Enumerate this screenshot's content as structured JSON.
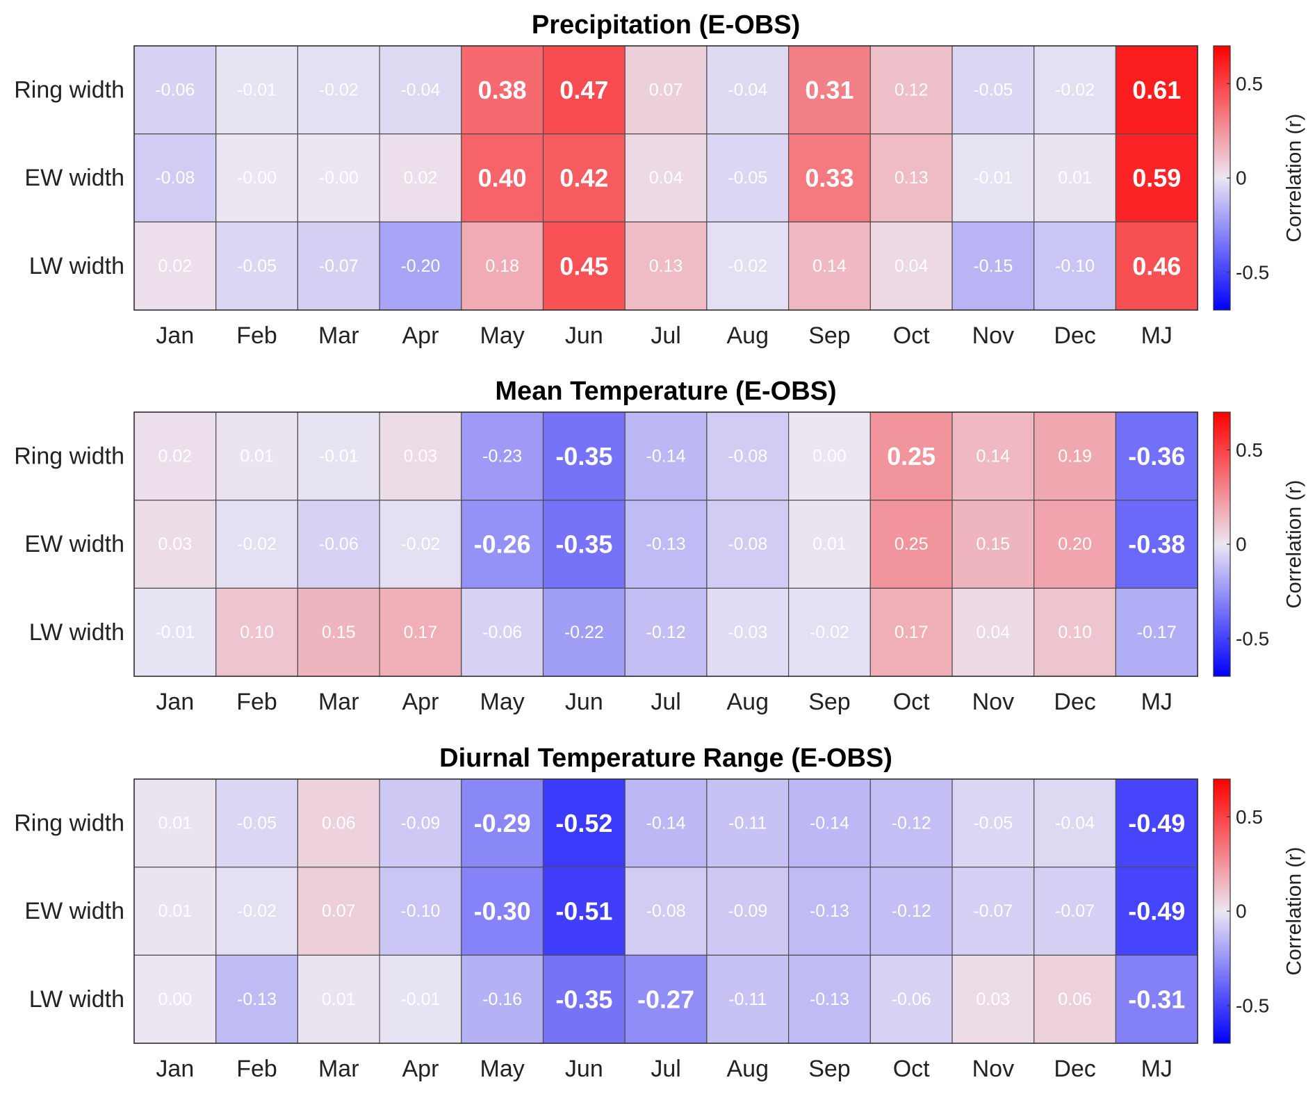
{
  "chart_data": [
    {
      "type": "heatmap",
      "title": "Precipitation (E-OBS)",
      "rows": [
        "Ring width",
        "EW width",
        "LW width"
      ],
      "columns": [
        "Jan",
        "Feb",
        "Mar",
        "Apr",
        "May",
        "Jun",
        "Jul",
        "Aug",
        "Sep",
        "Oct",
        "Nov",
        "Dec",
        "MJ"
      ],
      "values": [
        [
          -0.06,
          -0.01,
          -0.02,
          -0.04,
          0.38,
          0.47,
          0.07,
          -0.04,
          0.31,
          0.12,
          -0.05,
          -0.02,
          0.61
        ],
        [
          -0.08,
          -0.0,
          -0.0,
          0.02,
          0.4,
          0.42,
          0.04,
          -0.05,
          0.33,
          0.13,
          -0.01,
          0.01,
          0.59
        ],
        [
          0.02,
          -0.05,
          -0.07,
          -0.2,
          0.18,
          0.45,
          0.13,
          -0.02,
          0.14,
          0.04,
          -0.15,
          -0.1,
          0.46
        ]
      ],
      "labels": [
        [
          "-0.06",
          "-0.01",
          "-0.02",
          "-0.04",
          "0.38",
          "0.47",
          "0.07",
          "-0.04",
          "0.31",
          "0.12",
          "-0.05",
          "-0.02",
          "0.61"
        ],
        [
          "-0.08",
          "-0.00",
          "-0.00",
          "0.02",
          "0.40",
          "0.42",
          "0.04",
          "-0.05",
          "0.33",
          "0.13",
          "-0.01",
          "0.01",
          "0.59"
        ],
        [
          "0.02",
          "-0.05",
          "-0.07",
          "-0.20",
          "0.18",
          "0.45",
          "0.13",
          "-0.02",
          "0.14",
          "0.04",
          "-0.15",
          "-0.10",
          "0.46"
        ]
      ],
      "colorbar": {
        "label": "Correlation (r)",
        "range": [
          -0.7,
          0.7
        ],
        "ticks": [
          -0.5,
          0,
          0.5
        ],
        "tick_labels": [
          "-0.5",
          "0",
          "0.5"
        ]
      }
    },
    {
      "type": "heatmap",
      "title": "Mean Temperature (E-OBS)",
      "rows": [
        "Ring width",
        "EW width",
        "LW width"
      ],
      "columns": [
        "Jan",
        "Feb",
        "Mar",
        "Apr",
        "May",
        "Jun",
        "Jul",
        "Aug",
        "Sep",
        "Oct",
        "Nov",
        "Dec",
        "MJ"
      ],
      "values": [
        [
          0.02,
          0.01,
          -0.01,
          0.03,
          -0.23,
          -0.35,
          -0.14,
          -0.08,
          0.0,
          0.25,
          0.14,
          0.19,
          -0.36
        ],
        [
          0.03,
          -0.02,
          -0.06,
          -0.02,
          -0.26,
          -0.35,
          -0.13,
          -0.08,
          0.01,
          0.25,
          0.15,
          0.2,
          -0.38
        ],
        [
          -0.01,
          0.1,
          0.15,
          0.17,
          -0.06,
          -0.22,
          -0.12,
          -0.03,
          -0.02,
          0.17,
          0.04,
          0.1,
          -0.17
        ]
      ],
      "labels": [
        [
          "0.02",
          "0.01",
          "-0.01",
          "0.03",
          "-0.23",
          "-0.35",
          "-0.14",
          "-0.08",
          "0.00",
          "0.25",
          "0.14",
          "0.19",
          "-0.36"
        ],
        [
          "0.03",
          "-0.02",
          "-0.06",
          "-0.02",
          "-0.26",
          "-0.35",
          "-0.13",
          "-0.08",
          "0.01",
          "0.25",
          "0.15",
          "0.20",
          "-0.38"
        ],
        [
          "-0.01",
          "0.10",
          "0.15",
          "0.17",
          "-0.06",
          "-0.22",
          "-0.12",
          "-0.03",
          "-0.02",
          "0.17",
          "0.04",
          "0.10",
          "-0.17"
        ]
      ],
      "bold": [
        [
          false,
          false,
          false,
          false,
          false,
          true,
          false,
          false,
          false,
          true,
          false,
          false,
          true
        ],
        [
          false,
          false,
          false,
          false,
          true,
          true,
          false,
          false,
          false,
          false,
          false,
          false,
          true
        ],
        [
          false,
          false,
          false,
          false,
          false,
          false,
          false,
          false,
          false,
          false,
          false,
          false,
          false
        ]
      ],
      "colorbar": {
        "label": "Correlation (r)",
        "range": [
          -0.7,
          0.7
        ],
        "ticks": [
          -0.5,
          0,
          0.5
        ],
        "tick_labels": [
          "-0.5",
          "0",
          "0.5"
        ]
      }
    },
    {
      "type": "heatmap",
      "title": "Diurnal Temperature Range (E-OBS)",
      "rows": [
        "Ring width",
        "EW width",
        "LW width"
      ],
      "columns": [
        "Jan",
        "Feb",
        "Mar",
        "Apr",
        "May",
        "Jun",
        "Jul",
        "Aug",
        "Sep",
        "Oct",
        "Nov",
        "Dec",
        "MJ"
      ],
      "values": [
        [
          0.01,
          -0.05,
          0.06,
          -0.09,
          -0.29,
          -0.52,
          -0.14,
          -0.11,
          -0.14,
          -0.12,
          -0.05,
          -0.04,
          -0.49
        ],
        [
          0.01,
          -0.02,
          0.07,
          -0.1,
          -0.3,
          -0.51,
          -0.08,
          -0.09,
          -0.13,
          -0.12,
          -0.07,
          -0.07,
          -0.49
        ],
        [
          0.0,
          -0.13,
          0.01,
          -0.01,
          -0.16,
          -0.35,
          -0.27,
          -0.11,
          -0.13,
          -0.06,
          0.03,
          0.06,
          -0.31
        ]
      ],
      "labels": [
        [
          "0.01",
          "-0.05",
          "0.06",
          "-0.09",
          "-0.29",
          "-0.52",
          "-0.14",
          "-0.11",
          "-0.14",
          "-0.12",
          "-0.05",
          "-0.04",
          "-0.49"
        ],
        [
          "0.01",
          "-0.02",
          "0.07",
          "-0.10",
          "-0.30",
          "-0.51",
          "-0.08",
          "-0.09",
          "-0.13",
          "-0.12",
          "-0.07",
          "-0.07",
          "-0.49"
        ],
        [
          "0.00",
          "-0.13",
          "0.01",
          "-0.01",
          "-0.16",
          "-0.35",
          "-0.27",
          "-0.11",
          "-0.13",
          "-0.06",
          "0.03",
          "0.06",
          "-0.31"
        ]
      ],
      "colorbar": {
        "label": "Correlation (r)",
        "range": [
          -0.7,
          0.7
        ],
        "ticks": [
          -0.5,
          0,
          0.5
        ],
        "tick_labels": [
          "-0.5",
          "0",
          "0.5"
        ]
      }
    }
  ],
  "colors": {
    "positive": "#ff0000",
    "negative": "#0000ff",
    "neutral": "#ebe6f2",
    "grid": "#4d4d4d",
    "cell_text": "#ffffff"
  },
  "significance_threshold": 0.25
}
